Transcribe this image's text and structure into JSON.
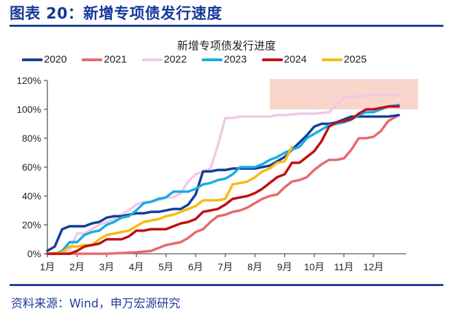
{
  "figure": {
    "title": "图表 20：新增专项债发行速度",
    "source": "资料来源：Wind，申万宏源研究"
  },
  "chart_data": {
    "type": "line",
    "title": "新增专项债发行进度",
    "xlabel": "",
    "ylabel": "",
    "x_ticks": [
      "1月",
      "2月",
      "3月",
      "4月",
      "5月",
      "6月",
      "7月",
      "8月",
      "9月",
      "10月",
      "11月",
      "12月"
    ],
    "y_ticks": [
      "0%",
      "20%",
      "40%",
      "60%",
      "80%",
      "100%",
      "120%"
    ],
    "ylim": [
      0,
      120
    ],
    "xlim": [
      1,
      13.1
    ],
    "grid": false,
    "legend_position": "top",
    "highlight_band": {
      "x_from": 8.5,
      "x_to": 13.5,
      "y_from": 100,
      "y_to": 121,
      "color": "#f9d5cc"
    },
    "series": [
      {
        "name": "2020",
        "color": "#133f9c",
        "x": [
          1,
          1.25,
          1.5,
          1.75,
          2.0,
          2.25,
          2.5,
          2.75,
          3.0,
          3.25,
          3.5,
          3.75,
          4.0,
          4.25,
          4.5,
          4.75,
          5.0,
          5.25,
          5.5,
          5.75,
          6.0,
          6.25,
          6.5,
          6.75,
          7.0,
          7.25,
          7.5,
          7.75,
          8.0,
          8.25,
          8.5,
          8.75,
          9.0,
          9.25,
          9.5,
          9.75,
          10.0,
          10.25,
          10.5,
          10.75,
          11.0,
          11.25,
          11.5,
          11.75,
          12.0,
          12.25,
          12.5,
          12.85
        ],
        "y": [
          2,
          5,
          17,
          19,
          19,
          19,
          21,
          22,
          25,
          26,
          26,
          27,
          28,
          28,
          29,
          29,
          30,
          31,
          31,
          34,
          41,
          57,
          57,
          58,
          58,
          59,
          59,
          59,
          59,
          60,
          61,
          64,
          67,
          72,
          77,
          82,
          88,
          90,
          90,
          91,
          93,
          95,
          95,
          95,
          95,
          95,
          95,
          96
        ]
      },
      {
        "name": "2021",
        "color": "#e8696b",
        "x": [
          1,
          1.5,
          2.0,
          2.5,
          3.0,
          3.5,
          4.0,
          4.5,
          5.0,
          5.25,
          5.5,
          5.75,
          6.0,
          6.25,
          6.5,
          6.75,
          7.0,
          7.25,
          7.5,
          7.75,
          8.0,
          8.25,
          8.5,
          8.75,
          9.0,
          9.25,
          9.5,
          9.75,
          10.0,
          10.25,
          10.5,
          10.75,
          11.0,
          11.25,
          11.5,
          11.75,
          12.0,
          12.25,
          12.5,
          12.85
        ],
        "y": [
          0,
          0,
          0,
          0,
          0,
          0.5,
          1,
          2,
          6,
          7,
          8,
          11,
          15,
          17,
          22,
          26,
          27,
          29,
          30,
          32,
          35,
          38,
          40,
          41,
          46,
          50,
          51,
          53,
          58,
          62,
          65,
          65,
          66,
          72,
          80,
          80,
          81,
          85,
          92,
          96
        ]
      },
      {
        "name": "2022",
        "color": "#f3c8e6",
        "x": [
          1,
          1.5,
          1.75,
          2.0,
          2.25,
          2.5,
          2.75,
          3.0,
          3.25,
          3.5,
          3.75,
          4.0,
          4.25,
          4.5,
          4.75,
          5.0,
          5.25,
          5.5,
          5.75,
          6.0,
          6.25,
          6.5,
          6.75,
          7.0,
          7.25,
          7.5,
          7.75,
          8.0,
          8.25,
          8.5,
          8.75,
          9.0,
          9.5,
          10.0,
          10.5,
          10.75,
          11.0,
          11.25,
          11.5,
          12.0,
          12.5,
          12.85
        ],
        "y": [
          0,
          0,
          2,
          14,
          14,
          17,
          20,
          22,
          24,
          27,
          30,
          34,
          36,
          36,
          37,
          39,
          39,
          42,
          50,
          55,
          57,
          59,
          75,
          94,
          94,
          95,
          95,
          95,
          95,
          95,
          96,
          96,
          97,
          97,
          98,
          103,
          108,
          109,
          109,
          110,
          110,
          110
        ]
      },
      {
        "name": "2023",
        "color": "#17ade2",
        "x": [
          1,
          1.25,
          1.5,
          1.75,
          2.0,
          2.25,
          2.5,
          2.75,
          3.0,
          3.25,
          3.5,
          3.75,
          4.0,
          4.25,
          4.5,
          4.75,
          5.0,
          5.25,
          5.5,
          5.75,
          6.0,
          6.25,
          6.5,
          6.75,
          7.0,
          7.25,
          7.5,
          7.75,
          8.0,
          8.25,
          8.5,
          8.75,
          9.0,
          9.25,
          9.5,
          9.75,
          10.0,
          10.25,
          10.5,
          10.75,
          11.0,
          11.25,
          11.5,
          11.75,
          12.0,
          12.25,
          12.5,
          12.85
        ],
        "y": [
          0,
          0,
          2,
          8,
          8,
          13,
          15,
          16,
          20,
          22,
          25,
          26,
          30,
          35,
          36,
          38,
          39,
          43,
          43,
          43,
          45,
          48,
          49,
          51,
          52,
          55,
          60,
          60,
          60,
          62,
          65,
          67,
          70,
          72,
          74,
          80,
          83,
          86,
          89,
          90,
          91,
          93,
          96,
          98,
          98,
          100,
          102,
          103
        ]
      },
      {
        "name": "2024",
        "color": "#c00f14",
        "x": [
          1,
          1.5,
          1.75,
          2.0,
          2.25,
          2.5,
          2.75,
          3.0,
          3.25,
          3.5,
          3.75,
          4.0,
          4.25,
          4.5,
          4.75,
          5.0,
          5.25,
          5.5,
          5.75,
          6.0,
          6.25,
          6.5,
          6.75,
          7.0,
          7.25,
          7.5,
          7.75,
          8.0,
          8.25,
          8.5,
          8.75,
          9.0,
          9.25,
          9.5,
          9.75,
          10.0,
          10.25,
          10.5,
          10.75,
          11.0,
          11.25,
          11.5,
          11.75,
          12.0,
          12.25,
          12.5,
          12.85
        ],
        "y": [
          0,
          0,
          0,
          2,
          5,
          6,
          7,
          10,
          10,
          10,
          12,
          16,
          16,
          17,
          17,
          17,
          19,
          21,
          22,
          24,
          29,
          30,
          31,
          34,
          38,
          39,
          40,
          42,
          45,
          49,
          53,
          55,
          63,
          63,
          67,
          71,
          78,
          88,
          91,
          92,
          93,
          97,
          100,
          100,
          101,
          102,
          102
        ]
      },
      {
        "name": "2025",
        "color": "#f8ba10",
        "x": [
          1,
          1.5,
          1.75,
          2.0,
          2.25,
          2.5,
          2.75,
          3.0,
          3.25,
          3.5,
          3.75,
          4.0,
          4.25,
          4.5,
          4.75,
          5.0,
          5.25,
          5.5,
          5.75,
          6.0,
          6.25,
          6.5,
          6.75,
          7.0,
          7.25,
          7.5,
          7.75,
          8.0,
          8.25,
          8.5,
          8.75,
          9.0,
          9.25
        ],
        "y": [
          0,
          1,
          5,
          5,
          6,
          6,
          10,
          13,
          14,
          15,
          16,
          19,
          22,
          23,
          24,
          26,
          27,
          29,
          31,
          33,
          37,
          37,
          37,
          38,
          48,
          49,
          50,
          53,
          57,
          59,
          63,
          64,
          74
        ]
      }
    ]
  }
}
